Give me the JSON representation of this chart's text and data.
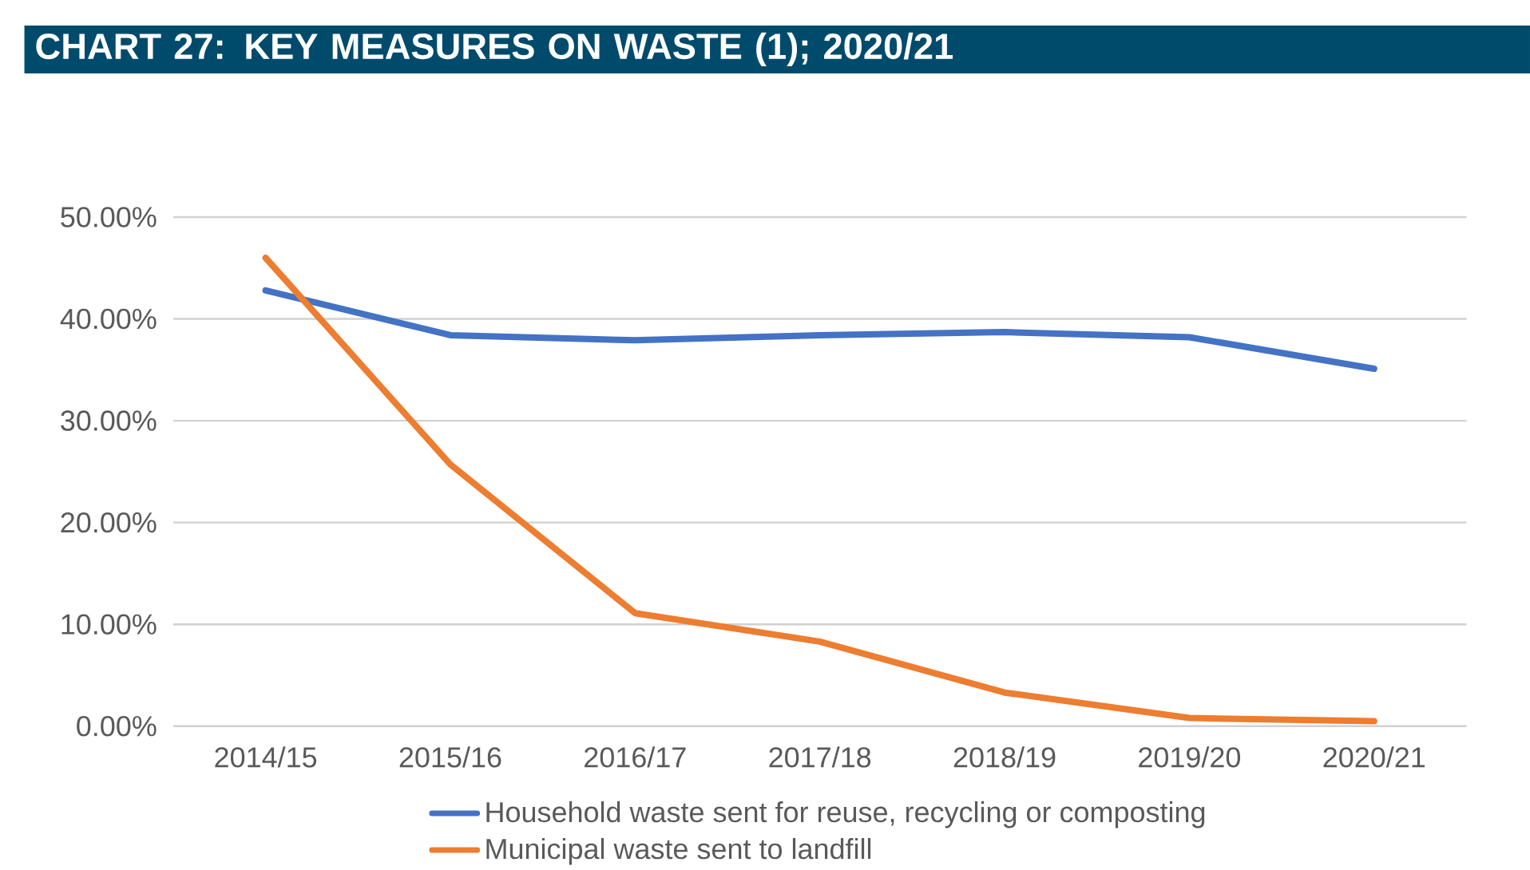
{
  "chart_data": {
    "type": "line",
    "title": "CHART 27: KEY MEASURES ON WASTE (1); 2020/21",
    "categories": [
      "2014/15",
      "2015/16",
      "2016/17",
      "2017/18",
      "2018/19",
      "2019/20",
      "2020/21"
    ],
    "series": [
      {
        "name": "Household waste sent for reuse, recycling or composting",
        "color": "#4472c4",
        "values": [
          42.8,
          38.4,
          37.9,
          38.4,
          38.7,
          38.2,
          35.1
        ]
      },
      {
        "name": "Municipal waste sent to landfill",
        "color": "#ed7d31",
        "values": [
          46.0,
          25.7,
          11.1,
          8.3,
          3.3,
          0.8,
          0.5
        ]
      }
    ],
    "ylim": [
      0,
      50
    ],
    "yticks": [
      {
        "value": 0,
        "label": "0.00%"
      },
      {
        "value": 10,
        "label": "10.00%"
      },
      {
        "value": 20,
        "label": "20.00%"
      },
      {
        "value": 30,
        "label": "30.00%"
      },
      {
        "value": 40,
        "label": "40.00%"
      },
      {
        "value": 50,
        "label": "50.00%"
      }
    ],
    "grid": "y",
    "legend": "bottom",
    "marker": "none",
    "line_style": "solid"
  }
}
